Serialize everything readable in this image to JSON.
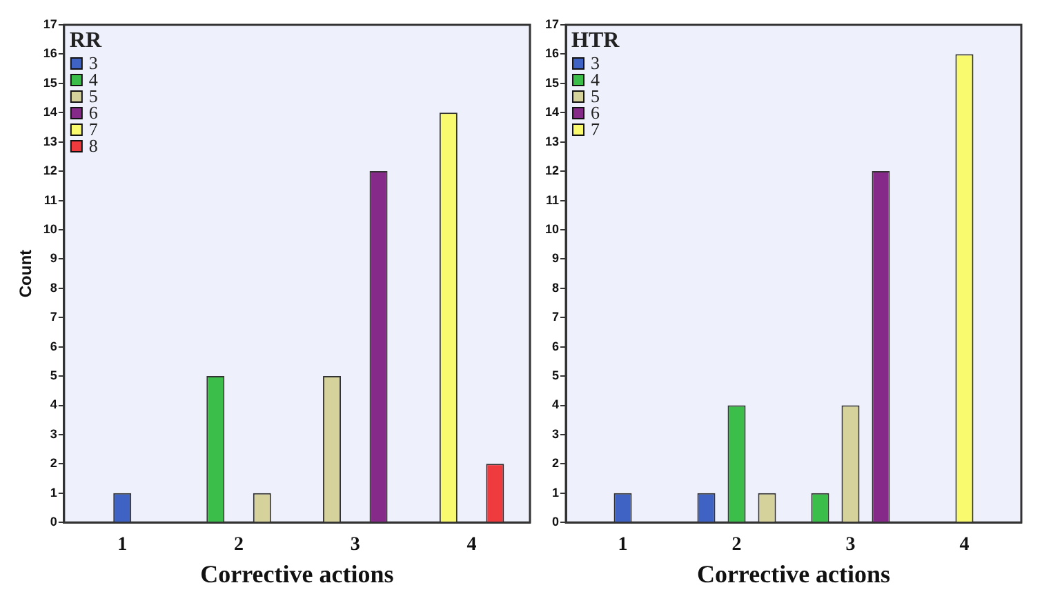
{
  "chart_data": [
    {
      "type": "bar",
      "legend_title": "RR",
      "xlabel": "Corrective actions",
      "ylabel": "Count",
      "categories": [
        "1",
        "2",
        "3",
        "4"
      ],
      "ylim": [
        0,
        17
      ],
      "yticks": [
        0,
        1,
        2,
        3,
        4,
        5,
        6,
        7,
        8,
        9,
        10,
        11,
        12,
        13,
        14,
        15,
        16,
        17
      ],
      "grid": false,
      "legend": "top left",
      "series": [
        {
          "name": "3",
          "color": "#3f63c4",
          "values": [
            1,
            null,
            null,
            null
          ]
        },
        {
          "name": "4",
          "color": "#3cbf4a",
          "values": [
            null,
            5,
            null,
            null
          ]
        },
        {
          "name": "5",
          "color": "#d6d29c",
          "values": [
            null,
            1,
            5,
            null
          ]
        },
        {
          "name": "6",
          "color": "#862a8a",
          "values": [
            null,
            null,
            12,
            null
          ]
        },
        {
          "name": "7",
          "color": "#fafa6e",
          "values": [
            null,
            null,
            null,
            14
          ]
        },
        {
          "name": "8",
          "color": "#ef3a3e",
          "values": [
            null,
            null,
            null,
            2
          ]
        }
      ]
    },
    {
      "type": "bar",
      "legend_title": "HTR",
      "xlabel": "Corrective actions",
      "categories": [
        "1",
        "2",
        "3",
        "4"
      ],
      "ylim": [
        0,
        17
      ],
      "yticks": [
        0,
        1,
        2,
        3,
        4,
        5,
        6,
        7,
        8,
        9,
        10,
        11,
        12,
        13,
        14,
        15,
        16,
        17
      ],
      "grid": false,
      "legend": "top left",
      "series": [
        {
          "name": "3",
          "color": "#3f63c4",
          "values": [
            1,
            1,
            null,
            null
          ]
        },
        {
          "name": "4",
          "color": "#3cbf4a",
          "values": [
            null,
            4,
            1,
            null
          ]
        },
        {
          "name": "5",
          "color": "#d6d29c",
          "values": [
            null,
            1,
            4,
            null
          ]
        },
        {
          "name": "6",
          "color": "#862a8a",
          "values": [
            null,
            null,
            12,
            null
          ]
        },
        {
          "name": "7",
          "color": "#fafa6e",
          "values": [
            null,
            null,
            null,
            16
          ]
        }
      ]
    }
  ]
}
